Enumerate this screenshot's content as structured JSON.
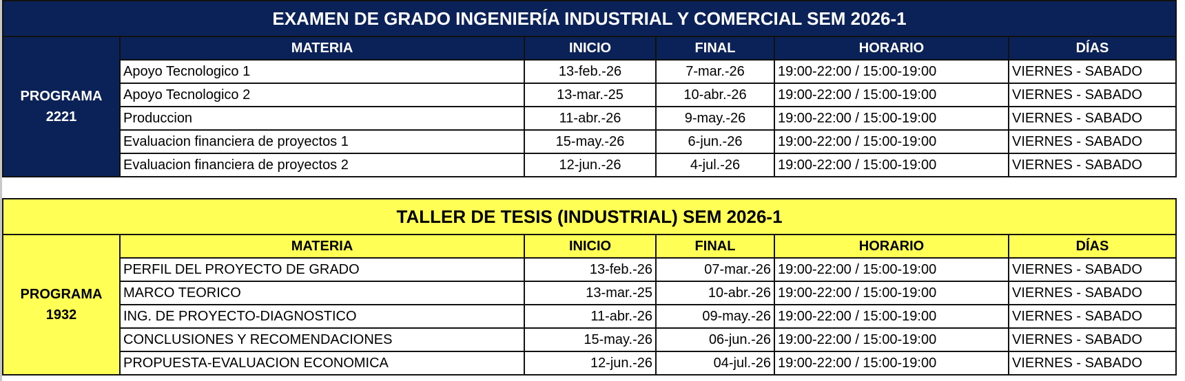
{
  "colors": {
    "blue_header": "#0b2259",
    "yellow_header": "#ffff55"
  },
  "tables": [
    {
      "title": "EXAMEN DE GRADO INGENIERÍA INDUSTRIAL Y COMERCIAL SEM 2026-1",
      "program": "PROGRAMA 2221",
      "headers": [
        "MATERIA",
        "INICIO",
        "FINAL",
        "HORARIO",
        "DÍAS"
      ],
      "rows": [
        [
          "Apoyo Tecnologico 1",
          "13-feb.-26",
          "7-mar.-26",
          "19:00-22:00 / 15:00-19:00",
          "VIERNES - SABADO"
        ],
        [
          "Apoyo Tecnologico 2",
          "13-mar.-25",
          "10-abr.-26",
          "19:00-22:00 / 15:00-19:00",
          "VIERNES - SABADO"
        ],
        [
          "Produccion",
          "11-abr.-26",
          "9-may.-26",
          "19:00-22:00 / 15:00-19:00",
          "VIERNES - SABADO"
        ],
        [
          "Evaluacion financiera de proyectos 1",
          "15-may.-26",
          "6-jun.-26",
          "19:00-22:00 / 15:00-19:00",
          "VIERNES - SABADO"
        ],
        [
          "Evaluacion financiera de proyectos 2",
          "12-jun.-26",
          "4-jul.-26",
          "19:00-22:00 / 15:00-19:00",
          "VIERNES - SABADO"
        ]
      ]
    },
    {
      "title": "TALLER DE TESIS (INDUSTRIAL) SEM 2026-1",
      "program": "PROGRAMA 1932",
      "headers": [
        "MATERIA",
        "INICIO",
        "FINAL",
        "HORARIO",
        "DÍAS"
      ],
      "rows": [
        [
          "PERFIL DEL PROYECTO DE GRADO",
          "13-feb.-26",
          "07-mar.-26",
          "19:00-22:00 / 15:00-19:00",
          "VIERNES - SABADO"
        ],
        [
          "MARCO TEORICO",
          "13-mar.-25",
          "10-abr.-26",
          "19:00-22:00 / 15:00-19:00",
          "VIERNES - SABADO"
        ],
        [
          "ING. DE PROYECTO-DIAGNOSTICO",
          "11-abr.-26",
          "09-may.-26",
          "19:00-22:00 / 15:00-19:00",
          "VIERNES - SABADO"
        ],
        [
          "CONCLUSIONES Y RECOMENDACIONES",
          "15-may.-26",
          "06-jun.-26",
          "19:00-22:00 / 15:00-19:00",
          "VIERNES - SABADO"
        ],
        [
          "PROPUESTA-EVALUACION ECONOMICA",
          "12-jun.-26",
          "04-jul.-26",
          "19:00-22:00 / 15:00-19:00",
          "VIERNES - SABADO"
        ]
      ]
    }
  ]
}
